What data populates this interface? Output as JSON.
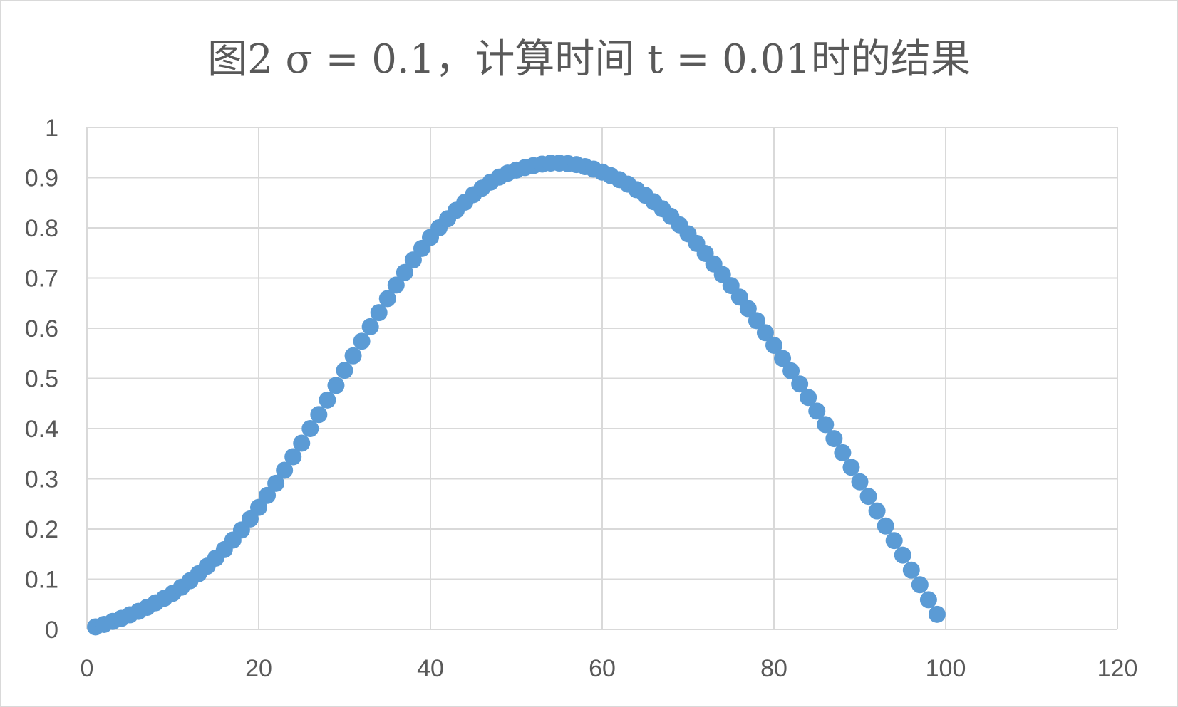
{
  "chart_data": {
    "type": "scatter",
    "title": "图2  σ = 0.1，计算时间 t = 0.01时的结果",
    "xlabel": "",
    "ylabel": "",
    "xlim": [
      0,
      120
    ],
    "ylim": [
      0,
      1
    ],
    "x_ticks": [
      "0",
      "20",
      "40",
      "60",
      "80",
      "100",
      "120"
    ],
    "y_ticks": [
      "0",
      "0.1",
      "0.2",
      "0.3",
      "0.4",
      "0.5",
      "0.6",
      "0.7",
      "0.8",
      "0.9",
      "1"
    ],
    "grid": true,
    "legend": "none",
    "marker_color": "#5b9bd5",
    "gridline_color": "#d9d9d9",
    "text_color": "#595959",
    "series": [
      {
        "x": [
          1,
          2,
          3,
          4,
          5,
          6,
          7,
          8,
          9,
          10,
          11,
          12,
          13,
          14,
          15,
          16,
          17,
          18,
          19,
          20,
          21,
          22,
          23,
          24,
          25,
          26,
          27,
          28,
          29,
          30,
          31,
          32,
          33,
          34,
          35,
          36,
          37,
          38,
          39,
          40,
          41,
          42,
          43,
          44,
          45,
          46,
          47,
          48,
          49,
          50,
          51,
          52,
          53,
          54,
          55,
          56,
          57,
          58,
          59,
          60,
          61,
          62,
          63,
          64,
          65,
          66,
          67,
          68,
          69,
          70,
          71,
          72,
          73,
          74,
          75,
          76,
          77,
          78,
          79,
          80,
          81,
          82,
          83,
          84,
          85,
          86,
          87,
          88,
          89,
          90,
          91,
          92,
          93,
          94,
          95,
          96,
          97,
          98,
          99
        ],
        "y": [
          0.005,
          0.01,
          0.016,
          0.022,
          0.029,
          0.036,
          0.044,
          0.053,
          0.062,
          0.072,
          0.084,
          0.097,
          0.111,
          0.126,
          0.142,
          0.159,
          0.178,
          0.198,
          0.22,
          0.243,
          0.267,
          0.291,
          0.317,
          0.344,
          0.371,
          0.4,
          0.428,
          0.457,
          0.486,
          0.516,
          0.545,
          0.574,
          0.603,
          0.631,
          0.659,
          0.686,
          0.711,
          0.736,
          0.759,
          0.781,
          0.8,
          0.818,
          0.835,
          0.851,
          0.866,
          0.879,
          0.891,
          0.901,
          0.909,
          0.915,
          0.92,
          0.924,
          0.927,
          0.929,
          0.929,
          0.928,
          0.926,
          0.922,
          0.917,
          0.911,
          0.904,
          0.896,
          0.887,
          0.876,
          0.865,
          0.852,
          0.838,
          0.823,
          0.806,
          0.788,
          0.769,
          0.749,
          0.728,
          0.707,
          0.685,
          0.662,
          0.639,
          0.615,
          0.591,
          0.566,
          0.54,
          0.515,
          0.489,
          0.462,
          0.435,
          0.408,
          0.38,
          0.352,
          0.323,
          0.294,
          0.265,
          0.236,
          0.206,
          0.177,
          0.148,
          0.118,
          0.089,
          0.059,
          0.03
        ]
      }
    ]
  }
}
